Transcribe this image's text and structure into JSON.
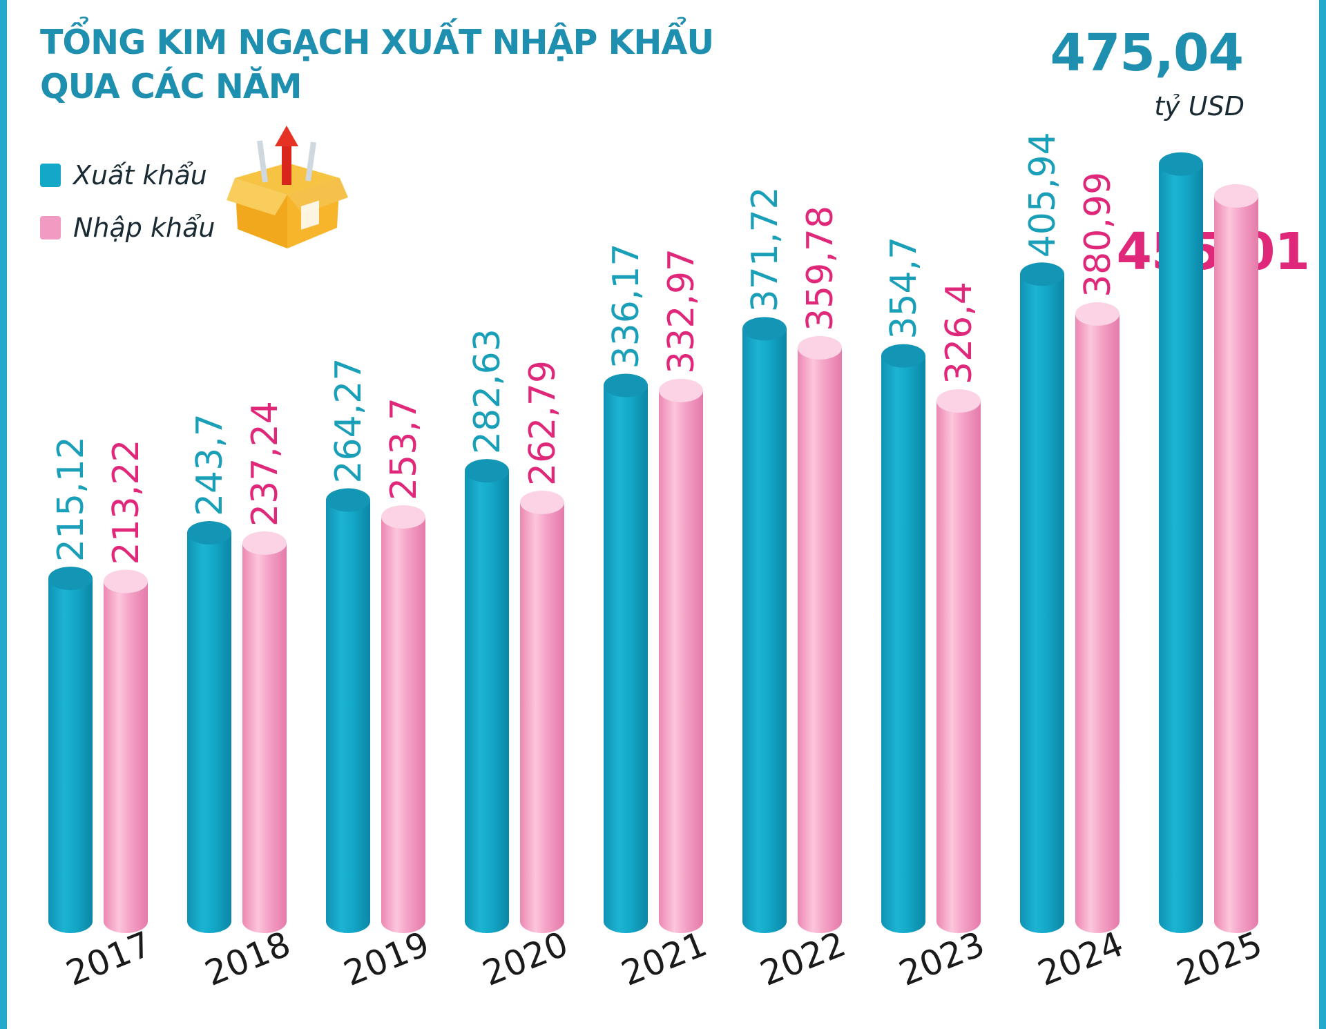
{
  "title_line1": "TỔNG KIM NGẠCH XUẤT NHẬP KHẨU",
  "title_line2": "QUA CÁC NĂM",
  "legend": {
    "export": "Xuất khẩu",
    "import": "Nhập khẩu"
  },
  "callouts": {
    "export_total": "475,04",
    "unit": "tỷ USD",
    "import_total": "455,01"
  },
  "colors": {
    "export": "#14a8c8",
    "import": "#f29bc2",
    "export_text": "#1a9fb8",
    "import_text": "#e0287a",
    "title": "#1f8fb0",
    "frame": "#23a9c9"
  },
  "icon": "cardboard-box-with-red-arrow-icon",
  "chart_data": {
    "type": "bar",
    "categories": [
      "2017",
      "2018",
      "2019",
      "2020",
      "2021",
      "2022",
      "2023",
      "2024",
      "2025"
    ],
    "series": [
      {
        "name": "Xuất khẩu",
        "values": [
          215.12,
          243.7,
          264.27,
          282.63,
          336.17,
          371.72,
          354.7,
          405.94,
          475.04
        ],
        "labels": [
          "215,12",
          "243,7",
          "264,27",
          "282,63",
          "336,17",
          "371,72",
          "354,7",
          "405,94",
          ""
        ]
      },
      {
        "name": "Nhập khẩu",
        "values": [
          213.22,
          237.24,
          253.7,
          262.79,
          332.97,
          359.78,
          326.4,
          380.99,
          455.01
        ],
        "labels": [
          "213,22",
          "237,24",
          "253,7",
          "262,79",
          "332,97",
          "359,78",
          "326,4",
          "380,99",
          ""
        ]
      }
    ],
    "legend_position": "top-left",
    "grid": false
  }
}
